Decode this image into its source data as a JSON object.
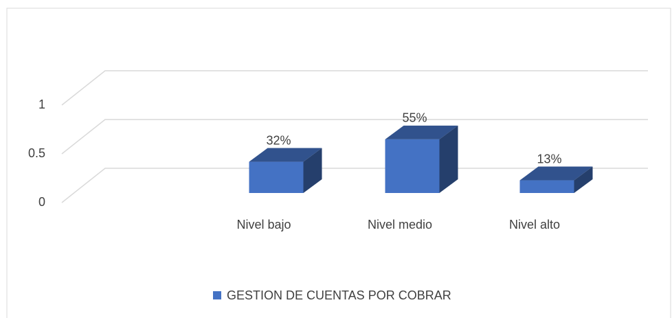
{
  "chart_data": {
    "type": "bar3d",
    "categories": [
      "Nivel bajo",
      "Nivel medio",
      "Nivel alto"
    ],
    "series": [
      {
        "name": "GESTION DE CUENTAS POR COBRAR",
        "color": "#4472c4",
        "values": [
          0.32,
          0.55,
          0.13
        ],
        "value_labels": [
          "32%",
          "55%",
          "13%"
        ]
      }
    ],
    "ylim": [
      0,
      1
    ],
    "yticks": [
      0,
      0.5,
      1
    ],
    "grid": true,
    "legend": "bottom"
  }
}
